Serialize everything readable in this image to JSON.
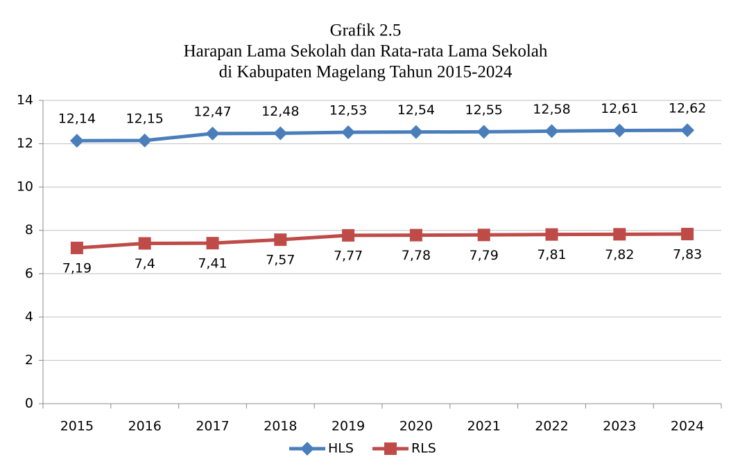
{
  "chart_data": {
    "type": "line",
    "title": [
      "Grafik 2.5",
      "Harapan Lama Sekolah dan Rata-rata Lama Sekolah",
      "di Kabupaten Magelang Tahun 2015-2024"
    ],
    "categories": [
      "2015",
      "2016",
      "2017",
      "2018",
      "2019",
      "2020",
      "2021",
      "2022",
      "2023",
      "2024"
    ],
    "series": [
      {
        "name": "HLS",
        "color": "#4a7ebb",
        "marker": "diamond",
        "label_position": "above",
        "values": [
          12.14,
          12.15,
          12.47,
          12.48,
          12.53,
          12.54,
          12.55,
          12.58,
          12.61,
          12.62
        ],
        "value_labels": [
          "12,14",
          "12,15",
          "12,47",
          "12,48",
          "12,53",
          "12,54",
          "12,55",
          "12,58",
          "12,61",
          "12,62"
        ]
      },
      {
        "name": "RLS",
        "color": "#be4b48",
        "marker": "square",
        "label_position": "below",
        "values": [
          7.19,
          7.4,
          7.41,
          7.57,
          7.77,
          7.78,
          7.79,
          7.81,
          7.82,
          7.83
        ],
        "value_labels": [
          "7,19",
          "7,4",
          "7,41",
          "7,57",
          "7,77",
          "7,78",
          "7,79",
          "7,81",
          "7,82",
          "7,83"
        ]
      }
    ],
    "ylim": [
      0,
      14
    ],
    "yticks": [
      0,
      2,
      4,
      6,
      8,
      10,
      12,
      14
    ],
    "grid": true,
    "legend": "bottom"
  }
}
